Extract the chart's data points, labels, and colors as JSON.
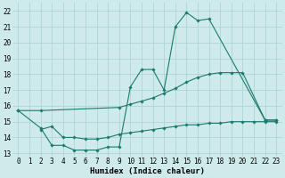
{
  "bg_color": "#ceeaea",
  "grid_color": "#afd4d4",
  "line_color": "#1a7a6e",
  "line_width": 0.8,
  "marker": "D",
  "marker_size": 1.8,
  "xlabel": "Humidex (Indice chaleur)",
  "xlabel_fontsize": 6.5,
  "tick_fontsize": 5.5,
  "xlim": [
    -0.5,
    23.5
  ],
  "ylim": [
    12.8,
    22.5
  ],
  "yticks": [
    13,
    14,
    15,
    16,
    17,
    18,
    19,
    20,
    21,
    22
  ],
  "xticks": [
    0,
    1,
    2,
    3,
    4,
    5,
    6,
    7,
    8,
    9,
    10,
    11,
    12,
    13,
    14,
    15,
    16,
    17,
    18,
    19,
    20,
    21,
    22,
    23
  ],
  "line1_x": [
    0,
    2,
    3,
    4,
    5,
    6,
    7,
    8,
    9,
    10,
    11,
    12,
    13,
    14,
    15,
    16,
    17,
    22,
    23
  ],
  "line1_y": [
    15.7,
    14.6,
    13.5,
    13.5,
    13.2,
    13.2,
    13.2,
    13.4,
    13.4,
    17.2,
    18.3,
    18.3,
    17.0,
    21.0,
    21.9,
    21.4,
    21.5,
    15.1,
    15.1
  ],
  "line2_x": [
    0,
    2,
    9,
    10,
    11,
    12,
    13,
    14,
    15,
    16,
    17,
    18,
    19,
    20,
    22,
    23
  ],
  "line2_y": [
    15.7,
    15.7,
    15.9,
    16.1,
    16.3,
    16.5,
    16.8,
    17.1,
    17.5,
    17.8,
    18.0,
    18.1,
    18.1,
    18.1,
    15.1,
    15.1
  ],
  "line3_x": [
    2,
    3,
    4,
    5,
    6,
    7,
    8,
    9,
    10,
    11,
    12,
    13,
    14,
    15,
    16,
    17,
    18,
    19,
    20,
    21,
    22,
    23
  ],
  "line3_y": [
    14.5,
    14.7,
    14.0,
    14.0,
    13.9,
    13.9,
    14.0,
    14.2,
    14.3,
    14.4,
    14.5,
    14.6,
    14.7,
    14.8,
    14.8,
    14.9,
    14.9,
    15.0,
    15.0,
    15.0,
    15.0,
    15.0
  ]
}
